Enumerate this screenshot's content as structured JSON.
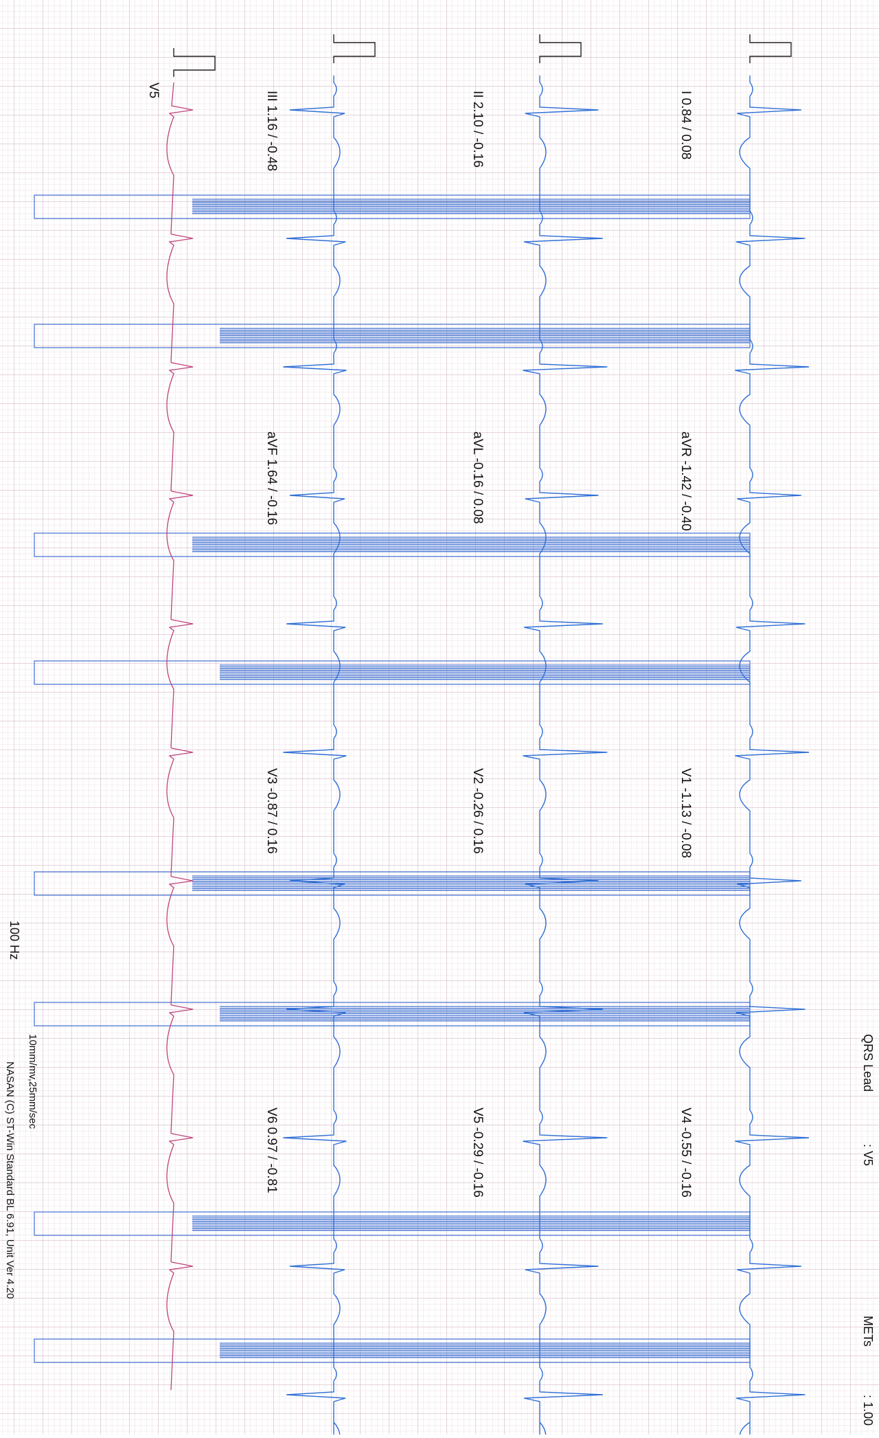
{
  "header": {
    "qrs_lead_label": "QRS Lead",
    "qrs_lead_value": ": V5",
    "mets_label": "METs",
    "mets_value": ": 1.00"
  },
  "leads": [
    {
      "label": "I 0.84 / 0.08"
    },
    {
      "label": "aVR -1.42 / -0.40"
    },
    {
      "label": "V1 -1.13 / -0.08"
    },
    {
      "label": "V4 -0.55 / -0.16"
    },
    {
      "label": "II 2.10 / -0.16"
    },
    {
      "label": "aVL -0.16 / 0.08"
    },
    {
      "label": "V2 -0.26 / 0.16"
    },
    {
      "label": "V5 -0.29 / -0.16"
    },
    {
      "label": "III 1.16 / -0.48"
    },
    {
      "label": "aVF 1.64 / -0.16"
    },
    {
      "label": "V3 -0.87 / 0.16"
    },
    {
      "label": "V6 0.97 / -0.81"
    }
  ],
  "rhythm_label": "V5",
  "footer": {
    "filter": "100 Hz",
    "scale": "10mm/mv,25mm/sec",
    "software": "NASAN (C) ST-Win Standard BL 6.91, Unit Ver 4.20"
  }
}
